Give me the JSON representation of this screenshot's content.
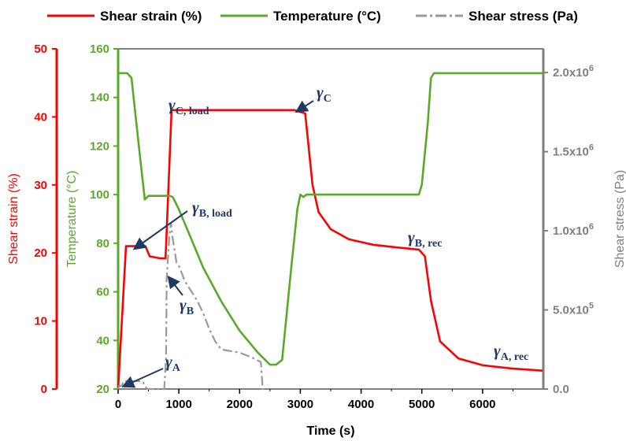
{
  "chart_data": {
    "type": "line",
    "title": "",
    "xlabel": "Time (s)",
    "xlim": [
      0,
      7000
    ],
    "xticks": [
      "0",
      "1000",
      "2000",
      "3000",
      "4000",
      "5000",
      "6000"
    ],
    "xtick_values": [
      0,
      1000,
      2000,
      3000,
      4000,
      5000,
      6000
    ],
    "legend_position": "top",
    "grid": false,
    "axes": {
      "strain": {
        "label": "Shear strain (%)",
        "color": "#ff0000",
        "side": "left-outer",
        "range": [
          0,
          50
        ],
        "ticks": [
          "0",
          "10",
          "20",
          "30",
          "40",
          "50"
        ],
        "tick_values": [
          0,
          10,
          20,
          30,
          40,
          50
        ]
      },
      "temperature": {
        "label": "Temperature (°C)",
        "color": "#5aaa2a",
        "side": "left-inner",
        "range": [
          20,
          160
        ],
        "ticks": [
          "20",
          "40",
          "60",
          "80",
          "100",
          "120",
          "140",
          "160"
        ],
        "tick_values": [
          20,
          40,
          60,
          80,
          100,
          120,
          140,
          160
        ]
      },
      "stress": {
        "label": "Shear stress (Pa)",
        "color": "#7f7f7f",
        "side": "right",
        "range": [
          0,
          2150000
        ],
        "ticks": [
          "0.0",
          "5.0x10",
          "1.0x10",
          "1.5x10",
          "2.0x10"
        ],
        "tick_exponents": [
          "",
          "5",
          "6",
          "6",
          "6"
        ],
        "tick_values": [
          0,
          500000,
          1000000,
          1500000,
          2000000
        ]
      }
    },
    "series": [
      {
        "name": "Shear strain (%)",
        "axis": "strain",
        "color": "#ff0000",
        "style": "solid",
        "x": [
          0,
          130,
          450,
          520,
          700,
          780,
          790,
          880,
          1200,
          2000,
          2900,
          3080,
          3200,
          3300,
          3500,
          3800,
          4200,
          4600,
          4950,
          5050,
          5150,
          5300,
          5600,
          6000,
          6500,
          6990
        ],
        "y": [
          0,
          21,
          21,
          19.5,
          19.2,
          19.2,
          21,
          41,
          41,
          41,
          41,
          40.5,
          30,
          26,
          23.5,
          22,
          21.2,
          20.8,
          20.5,
          19.5,
          13,
          7,
          4.5,
          3.5,
          3,
          2.7
        ]
      },
      {
        "name": "Temperature (°C)",
        "axis": "temperature",
        "color": "#5aaa2a",
        "style": "solid",
        "x": [
          0,
          150,
          220,
          350,
          440,
          500,
          850,
          900,
          1000,
          1200,
          1400,
          1700,
          2000,
          2300,
          2500,
          2600,
          2700,
          2850,
          2950,
          3000,
          3050,
          3100,
          4950,
          5000,
          5100,
          5150,
          5200,
          6990
        ],
        "y": [
          150,
          150,
          148,
          118,
          98,
          99.5,
          99.5,
          99,
          94,
          82,
          70,
          56,
          44,
          35,
          30,
          30,
          32,
          70,
          94,
          100,
          99,
          100,
          100,
          104,
          130,
          148,
          150,
          150
        ]
      },
      {
        "name": "Shear stress (Pa)",
        "axis": "stress",
        "color": "#999999",
        "style": "dashdot",
        "x": [
          0,
          20,
          60,
          90,
          130,
          400,
          460,
          480,
          760,
          790,
          800,
          840,
          870,
          900,
          920,
          960,
          1000,
          1100,
          1200,
          1300,
          1400,
          1500,
          1600,
          1700,
          2000,
          2200,
          2350,
          2380,
          2400
        ],
        "y": [
          0,
          20000,
          20000,
          50000,
          50000,
          50000,
          10000,
          0,
          0,
          200000,
          700000,
          950000,
          1050000,
          950000,
          900000,
          800000,
          780000,
          680000,
          620000,
          560000,
          480000,
          380000,
          300000,
          250000,
          230000,
          200000,
          170000,
          0,
          0
        ]
      }
    ],
    "annotations": [
      {
        "symbol": "γ",
        "sub": "C, load"
      },
      {
        "symbol": "γ",
        "sub": "C"
      },
      {
        "symbol": "γ",
        "sub": "B, load"
      },
      {
        "symbol": "γ",
        "sub": "B"
      },
      {
        "symbol": "γ",
        "sub": "B, rec"
      },
      {
        "symbol": "γ",
        "sub": "A"
      },
      {
        "symbol": "γ",
        "sub": "A, rec"
      }
    ]
  }
}
